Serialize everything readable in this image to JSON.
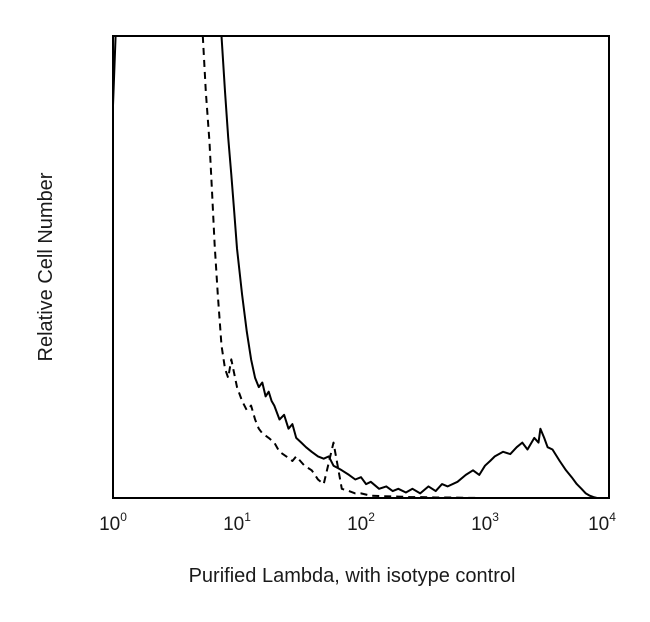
{
  "chart_data": {
    "type": "line",
    "xlabel": "Purified Lambda, with isotype control",
    "ylabel": "Relative Cell Number",
    "xscale": "log",
    "xlim": [
      1,
      10000
    ],
    "ylim": [
      0,
      100
    ],
    "grid": false,
    "x_ticks": [
      {
        "base": "10",
        "exp": "0"
      },
      {
        "base": "10",
        "exp": "1"
      },
      {
        "base": "10",
        "exp": "2"
      },
      {
        "base": "10",
        "exp": "3"
      },
      {
        "base": "10",
        "exp": "4"
      }
    ],
    "series": [
      {
        "style": "solid",
        "color": "#000000",
        "x": [
          1.0,
          1.05,
          1.1,
          1.2,
          7.5,
          8.0,
          8.5,
          9.0,
          9.5,
          10,
          11,
          12,
          13,
          14,
          15,
          16,
          17,
          18,
          19,
          20,
          22,
          24,
          26,
          28,
          30,
          33,
          36,
          40,
          45,
          50,
          55,
          60,
          65,
          70,
          80,
          90,
          100,
          110,
          120,
          140,
          160,
          180,
          200,
          230,
          260,
          300,
          350,
          400,
          450,
          500,
          600,
          700,
          800,
          900,
          1000,
          1100,
          1200,
          1400,
          1600,
          1800,
          2000,
          2200,
          2500,
          2700,
          2800,
          3000,
          3200,
          3500,
          4000,
          4500,
          5000,
          5500,
          6000,
          6500,
          7000,
          7500,
          8000
        ],
        "y": [
          85,
          100,
          100,
          100,
          100,
          88,
          78,
          70,
          62,
          54,
          44,
          36,
          30,
          26,
          24,
          25,
          22,
          23,
          21,
          20,
          17,
          18,
          15,
          16,
          13,
          12,
          11,
          10,
          9,
          8.5,
          9,
          7,
          6.5,
          6,
          5,
          4,
          4.5,
          3,
          3.5,
          2,
          2.5,
          1.5,
          2,
          1.2,
          2,
          1,
          2.5,
          1.5,
          3,
          2.5,
          3.5,
          5,
          6,
          5,
          7,
          8,
          9,
          10,
          9.5,
          11,
          12,
          10.5,
          13,
          12,
          15,
          13,
          11,
          10.5,
          8,
          6,
          4.5,
          3,
          2,
          1,
          0.5,
          0.2,
          0
        ]
      },
      {
        "style": "dashed",
        "color": "#000000",
        "x": [
          5.3,
          5.6,
          6.0,
          6.3,
          6.6,
          7.0,
          7.5,
          8.0,
          8.5,
          9.0,
          10,
          11,
          12,
          13,
          14,
          15,
          16,
          18,
          20,
          22,
          25,
          28,
          30,
          35,
          40,
          45,
          50,
          60,
          70,
          80,
          90,
          100,
          120,
          150,
          200,
          250,
          300,
          400,
          500,
          700,
          1000
        ],
        "y": [
          100,
          88,
          77,
          66,
          55,
          44,
          33,
          28,
          26,
          30,
          24,
          21,
          19,
          20,
          17,
          15,
          14,
          13,
          12,
          10,
          9,
          8,
          9,
          7,
          6,
          4,
          3,
          12,
          2,
          1.5,
          1,
          1,
          0.5,
          0.4,
          0.3,
          0.2,
          0.2,
          0.1,
          0.1,
          0.05,
          0
        ]
      }
    ]
  }
}
